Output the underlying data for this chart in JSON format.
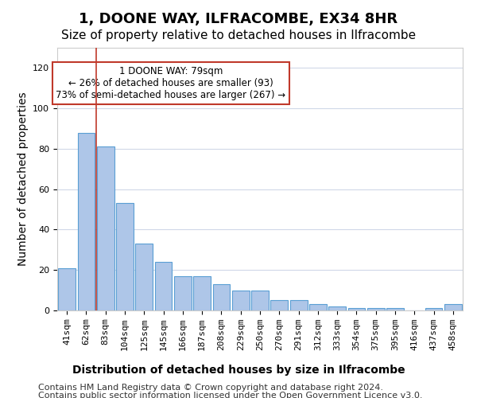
{
  "title": "1, DOONE WAY, ILFRACOMBE, EX34 8HR",
  "subtitle": "Size of property relative to detached houses in Ilfracombe",
  "xlabel": "Distribution of detached houses by size in Ilfracombe",
  "ylabel": "Number of detached properties",
  "categories": [
    "41sqm",
    "62sqm",
    "83sqm",
    "104sqm",
    "125sqm",
    "145sqm",
    "166sqm",
    "187sqm",
    "208sqm",
    "229sqm",
    "250sqm",
    "270sqm",
    "291sqm",
    "312sqm",
    "333sqm",
    "354sqm",
    "375sqm",
    "395sqm",
    "416sqm",
    "437sqm",
    "458sqm"
  ],
  "values": [
    21,
    88,
    81,
    53,
    33,
    24,
    17,
    17,
    13,
    10,
    10,
    5,
    5,
    3,
    2,
    1,
    1,
    1,
    0,
    1,
    3
  ],
  "bar_color": "#aec6e8",
  "bar_edgecolor": "#5a9fd4",
  "property_line_x": 2,
  "property_line_color": "#c0392b",
  "annotation_text": "1 DOONE WAY: 79sqm\n← 26% of detached houses are smaller (93)\n73% of semi-detached houses are larger (267) →",
  "annotation_box_color": "#ffffff",
  "annotation_box_edgecolor": "#c0392b",
  "ylim": [
    0,
    130
  ],
  "yticks": [
    0,
    20,
    40,
    60,
    80,
    100,
    120
  ],
  "footer_line1": "Contains HM Land Registry data © Crown copyright and database right 2024.",
  "footer_line2": "Contains public sector information licensed under the Open Government Licence v3.0.",
  "background_color": "#ffffff",
  "grid_color": "#d0d8e8",
  "title_fontsize": 13,
  "subtitle_fontsize": 11,
  "axis_label_fontsize": 10,
  "tick_fontsize": 8,
  "footer_fontsize": 8
}
